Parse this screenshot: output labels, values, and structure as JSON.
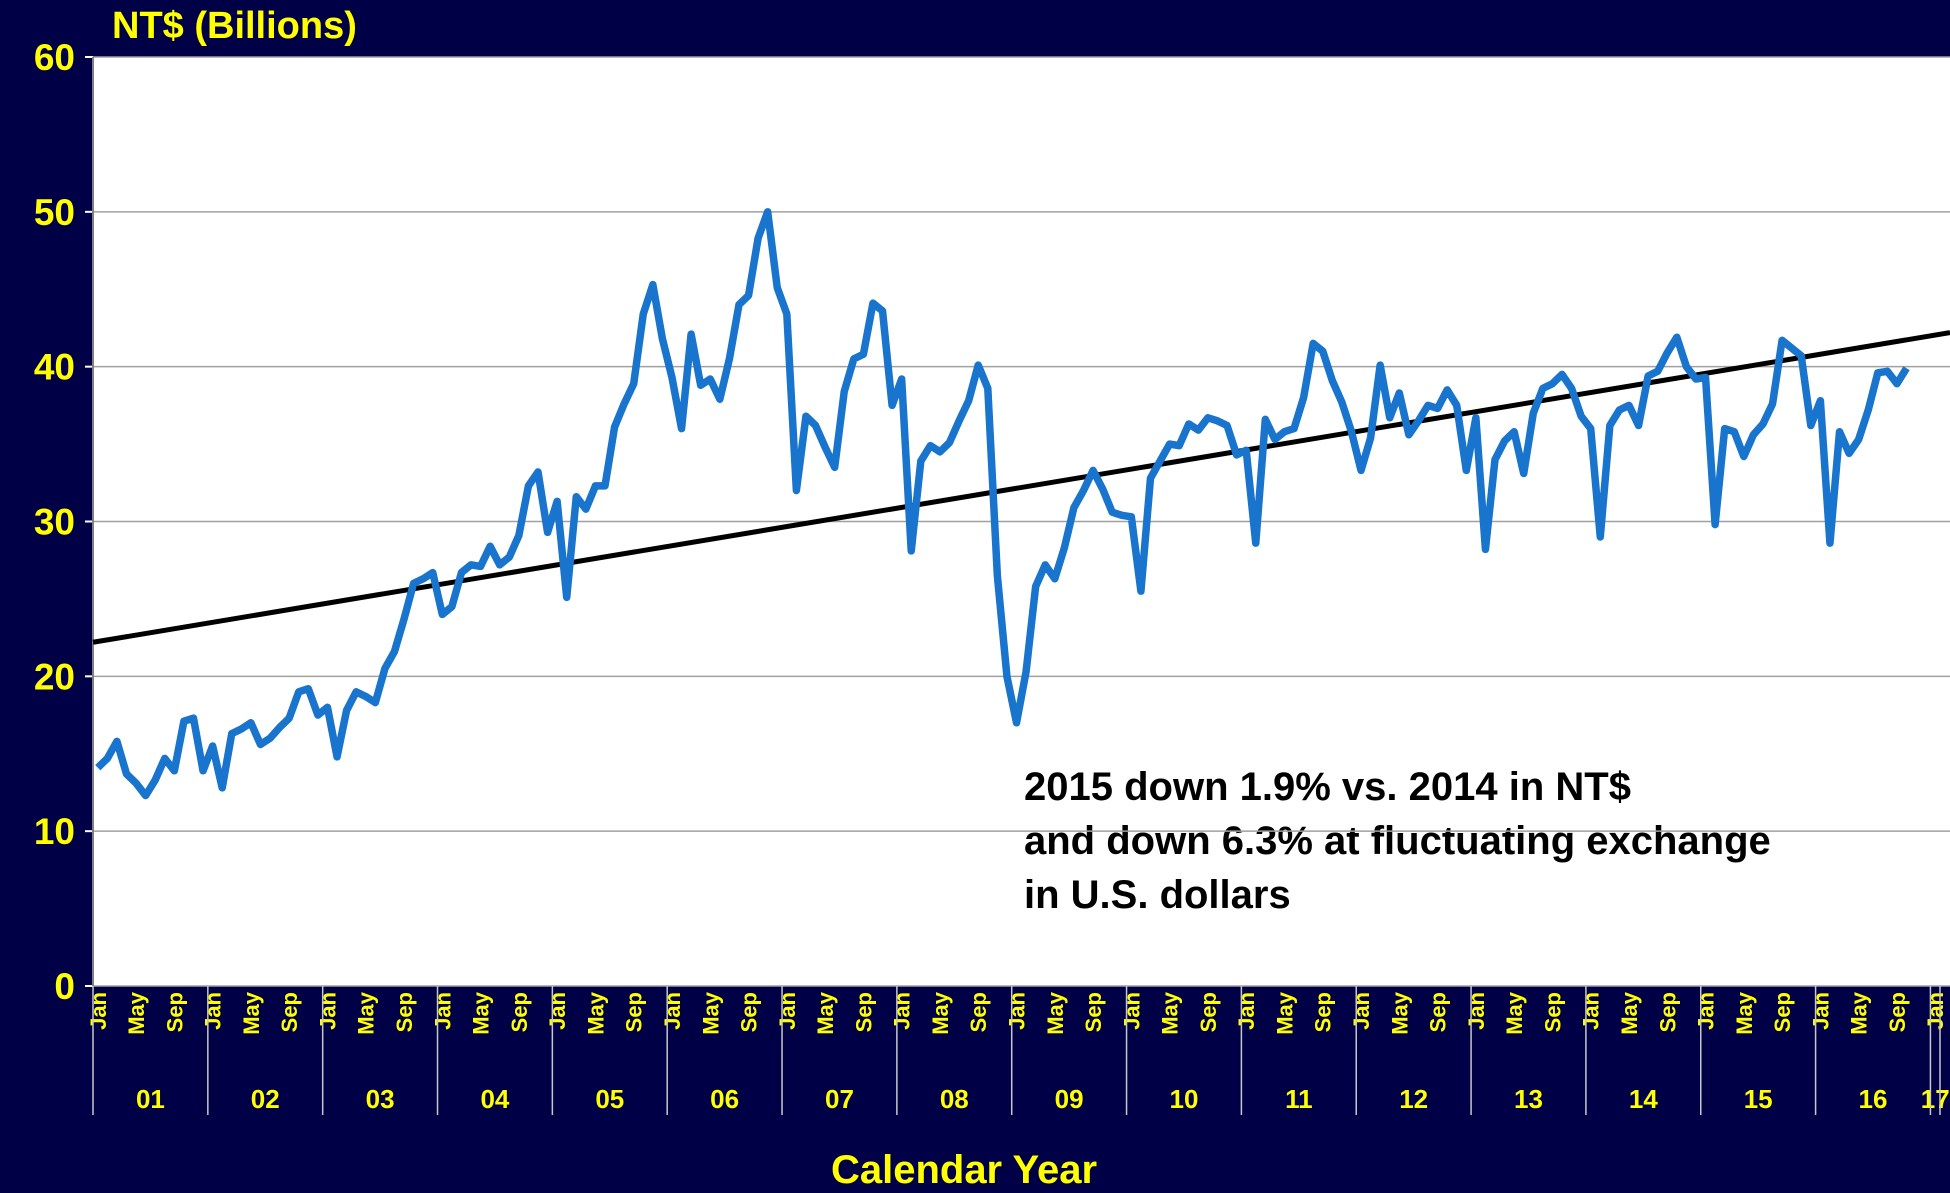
{
  "chart_data": {
    "type": "line",
    "title": "NT$ (Billions)",
    "x_label": "Calendar Year",
    "annotation": [
      "2015 down 1.9% vs. 2014 in NT$",
      "and down 6.3% at fluctuating exchange",
      "in U.S. dollars"
    ],
    "categories": [
      "Jan",
      null,
      null,
      null,
      "May",
      null,
      null,
      null,
      "Sep",
      null,
      null,
      null,
      "Jan",
      null,
      null,
      null,
      "May",
      null,
      null,
      null,
      "Sep",
      null,
      null,
      null,
      "Jan",
      null,
      null,
      null,
      "May",
      null,
      null,
      null,
      "Sep",
      null,
      null,
      null,
      "Jan",
      null,
      null,
      null,
      "May",
      null,
      null,
      null,
      "Sep",
      null,
      null,
      null,
      "Jan",
      null,
      null,
      null,
      "May",
      null,
      null,
      null,
      "Sep",
      null,
      null,
      null,
      "Jan",
      null,
      null,
      null,
      "May",
      null,
      null,
      null,
      "Sep",
      null,
      null,
      null,
      "Jan",
      null,
      null,
      null,
      "May",
      null,
      null,
      null,
      "Sep",
      null,
      null,
      null,
      "Jan",
      null,
      null,
      null,
      "May",
      null,
      null,
      null,
      "Sep",
      null,
      null,
      null,
      "Jan",
      null,
      null,
      null,
      "May",
      null,
      null,
      null,
      "Sep",
      null,
      null,
      null,
      "Jan",
      null,
      null,
      null,
      "May",
      null,
      null,
      null,
      "Sep",
      null,
      null,
      null,
      "Jan",
      null,
      null,
      null,
      "May",
      null,
      null,
      null,
      "Sep",
      null,
      null,
      null,
      "Jan",
      null,
      null,
      null,
      "May",
      null,
      null,
      null,
      "Sep",
      null,
      null,
      null,
      "Jan",
      null,
      null,
      null,
      "May",
      null,
      null,
      null,
      "Sep",
      null,
      null,
      null,
      "Jan",
      null,
      null,
      null,
      "May",
      null,
      null,
      null,
      "Sep",
      null,
      null,
      null,
      "Jan",
      null,
      null,
      null,
      "May",
      null,
      null,
      null,
      "Sep",
      null,
      null,
      null,
      "Jan",
      null,
      null,
      null,
      "May",
      null,
      null,
      null,
      "Sep",
      null,
      null,
      null,
      "Jan"
    ],
    "years": [
      "01",
      "02",
      "03",
      "04",
      "05",
      "06",
      "07",
      "08",
      "09",
      "10",
      "11",
      "12",
      "13",
      "14",
      "15",
      "16",
      "17"
    ],
    "series": [
      {
        "name": "NT$",
        "color": "#1874cd",
        "values": [
          14.1,
          14.7,
          15.8,
          13.7,
          13.1,
          12.3,
          13.3,
          14.7,
          13.9,
          17.1,
          17.3,
          13.9,
          15.5,
          12.8,
          16.3,
          16.6,
          17,
          15.6,
          16,
          16.7,
          17.3,
          19,
          19.2,
          17.5,
          18,
          14.8,
          17.8,
          19,
          18.7,
          18.3,
          20.5,
          21.6,
          23.7,
          26,
          26.3,
          26.7,
          24,
          24.5,
          26.7,
          27.2,
          27.1,
          28.4,
          27.2,
          27.7,
          29.1,
          32.3,
          33.2,
          29.3,
          31.3,
          25.1,
          31.6,
          30.8,
          32.3,
          32.3,
          36.1,
          37.6,
          38.9,
          43.4,
          45.3,
          41.8,
          39.3,
          36,
          42.1,
          38.8,
          39.2,
          37.9,
          40.5,
          44,
          44.6,
          48.3,
          50,
          45.1,
          43.4,
          32,
          36.8,
          36.2,
          34.8,
          33.5,
          38.4,
          40.5,
          40.8,
          44.1,
          43.6,
          37.5,
          39.2,
          28.1,
          33.9,
          34.9,
          34.5,
          35.1,
          36.5,
          37.8,
          40.1,
          38.6,
          26.5,
          20,
          17,
          20.3,
          25.8,
          27.2,
          26.3,
          28.3,
          30.9,
          32,
          33.3,
          32.1,
          30.6,
          30.4,
          30.3,
          25.5,
          32.8,
          33.9,
          35,
          34.9,
          36.3,
          35.9,
          36.7,
          36.5,
          36.2,
          34.3,
          34.6,
          28.6,
          36.6,
          35.3,
          35.8,
          36,
          38,
          41.5,
          41,
          39.1,
          37.7,
          35.8,
          33.3,
          35.4,
          40.1,
          36.7,
          38.3,
          35.6,
          36.5,
          37.5,
          37.3,
          38.5,
          37.5,
          33.3,
          36.7,
          28.2,
          34,
          35.2,
          35.8,
          33.1,
          37,
          38.6,
          38.9,
          39.5,
          38.6,
          36.8,
          36,
          29,
          36.2,
          37.2,
          37.5,
          36.2,
          39.4,
          39.7,
          40.9,
          41.9,
          40,
          39.2,
          39.3,
          29.8,
          36,
          35.8,
          34.2,
          35.6,
          36.3,
          37.6,
          41.7,
          41.2,
          40.7,
          36.2,
          37.8,
          28.6,
          35.8,
          34.4,
          35.3,
          37.2,
          39.6,
          39.7,
          38.9,
          39.9,
          null,
          null,
          null
        ]
      }
    ],
    "trend_values": [
      22.2,
      42.2
    ],
    "trend_color": "#000000",
    "ylim": [
      0,
      60
    ],
    "yticks": [
      0,
      10,
      20,
      30,
      40,
      50,
      60
    ],
    "grid": true
  }
}
